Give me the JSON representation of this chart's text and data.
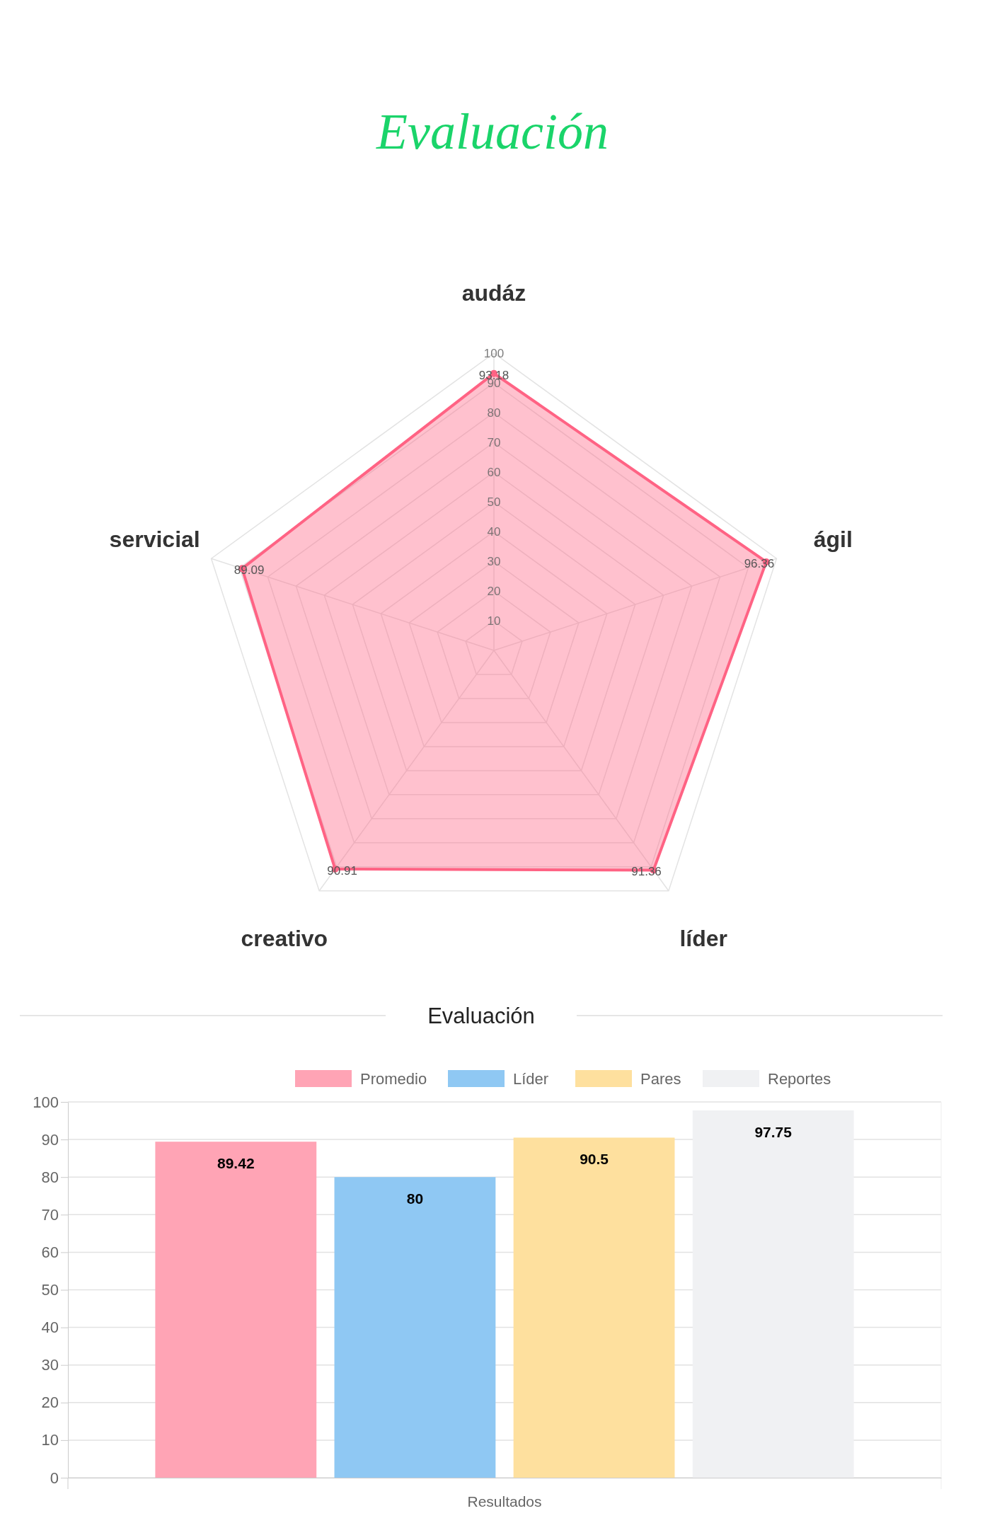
{
  "chart_data": [
    {
      "type": "radar",
      "title": "Evaluación",
      "categories": [
        "audáz",
        "ágil",
        "líder",
        "creativo",
        "servicial"
      ],
      "series": [
        {
          "color": "#ff6384",
          "values": [
            93.18,
            96.36,
            91.36,
            90.91,
            89.09
          ]
        }
      ],
      "ylim": [
        0,
        100
      ],
      "yticks": [
        10,
        20,
        30,
        40,
        50,
        60,
        70,
        80,
        90,
        100
      ],
      "grid": true,
      "data_labels": true
    },
    {
      "type": "bar",
      "title": "Evaluación",
      "categories": [
        "Resultados"
      ],
      "series": [
        {
          "name": "Promedio",
          "color": "#ffa4b5",
          "values": [
            89.42
          ]
        },
        {
          "name": "Líder",
          "color": "#8fc8f3",
          "values": [
            80
          ]
        },
        {
          "name": "Pares",
          "color": "#fee09e",
          "values": [
            90.5
          ]
        },
        {
          "name": "Reportes",
          "color": "#f0f1f3",
          "values": [
            97.75
          ]
        }
      ],
      "ylim": [
        0,
        100
      ],
      "yticks": [
        0,
        10,
        20,
        30,
        40,
        50,
        60,
        70,
        80,
        90,
        100
      ],
      "grid": true,
      "legend": "top",
      "data_labels": true
    }
  ]
}
